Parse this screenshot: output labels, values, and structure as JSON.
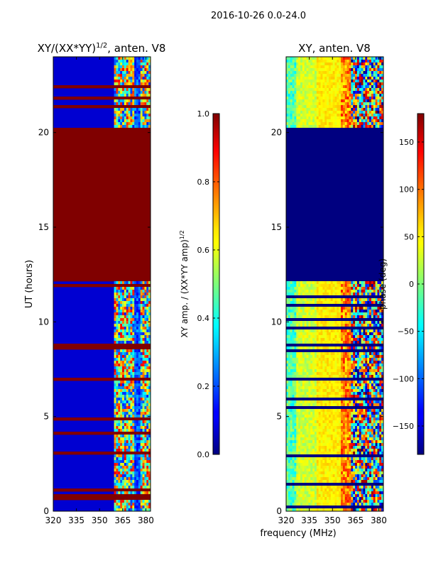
{
  "figure": {
    "suptitle": "2016-10-26 0.0-24.0",
    "shared_xlabel": "frequency (MHz)"
  },
  "chart_data": [
    {
      "type": "heatmap",
      "title": "XY/(XX*YY)",
      "title_exponent": "1/2",
      "title_suffix": ", anten. V8",
      "xlabel": "",
      "ylabel": "UT (hours)",
      "xlim": [
        320,
        383
      ],
      "ylim": [
        0,
        24
      ],
      "xticks": [
        320,
        335,
        350,
        365,
        380
      ],
      "yticks": [
        0,
        5,
        10,
        15,
        20
      ],
      "saturated_block_hours": [
        12.2,
        20.2
      ],
      "colorbar": {
        "label": "XY amp. / (XX*YY amp)",
        "label_exponent": "1/2",
        "range": [
          0.0,
          1.0
        ],
        "ticks": [
          "0.0",
          "0.2",
          "0.4",
          "0.6",
          "0.8",
          "1.0"
        ]
      }
    },
    {
      "type": "heatmap",
      "title": "XY, anten. V8",
      "xlabel": "frequency (MHz)",
      "ylabel": "",
      "xlim": [
        320,
        383
      ],
      "ylim": [
        0,
        24
      ],
      "xticks": [
        320,
        335,
        350,
        365,
        380
      ],
      "yticks": [
        0,
        5,
        10,
        15,
        20
      ],
      "flagged_block_hours": [
        12.2,
        20.2
      ],
      "colorbar": {
        "label": "phase (deg)",
        "range": [
          -180,
          180
        ],
        "ticks": [
          "−150",
          "−100",
          "−50",
          "0",
          "50",
          "100",
          "150"
        ]
      }
    }
  ]
}
